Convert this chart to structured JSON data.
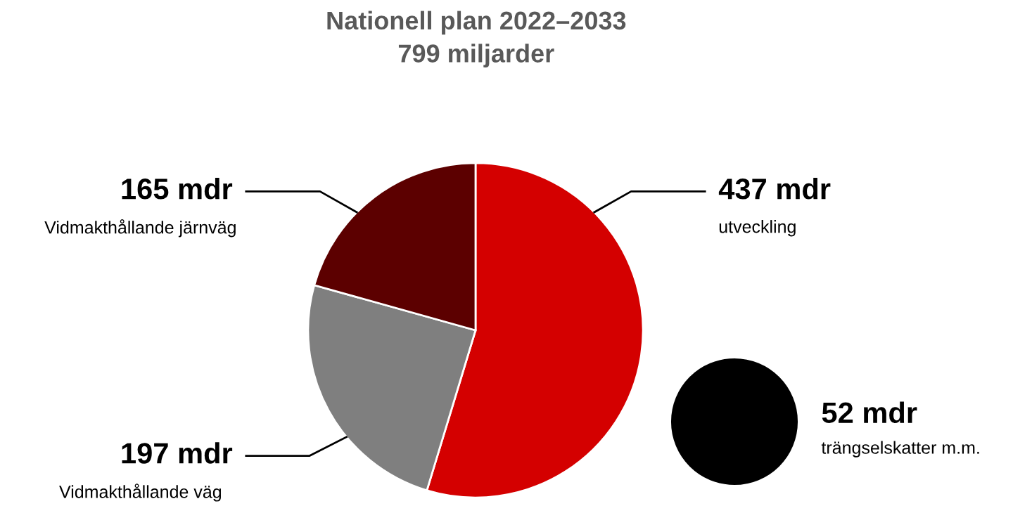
{
  "chart_data": [
    {
      "type": "pie",
      "title": "Nationell plan 2022–2033",
      "subtitle": "799 miljarder",
      "categories": [
        "utveckling",
        "Vidmakthållande väg",
        "Vidmakthållande järnväg"
      ],
      "values": [
        437,
        197,
        165
      ],
      "value_labels": [
        "437 mdr",
        "197 mdr",
        "165 mdr"
      ],
      "colors": [
        "#d40000",
        "#7f7f7f",
        "#5c0000"
      ]
    },
    {
      "type": "pie",
      "categories": [
        "trängselskatter m.m."
      ],
      "values": [
        52
      ],
      "value_labels": [
        "52 mdr"
      ],
      "colors": [
        "#000000"
      ]
    }
  ]
}
